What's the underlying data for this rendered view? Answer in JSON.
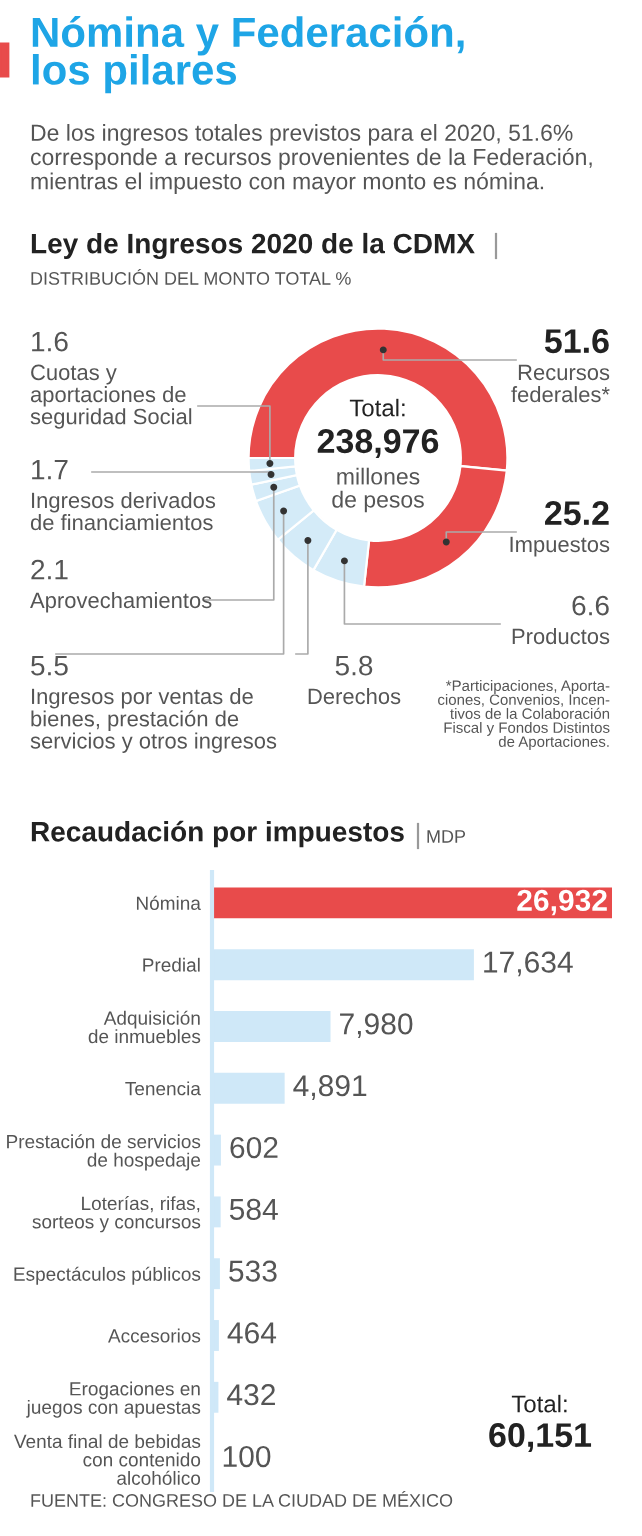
{
  "chart_data": [
    {
      "type": "donut",
      "title": "Ley de Ingresos 2020 de la CDMX",
      "subtitle": "DISTRIBUCIÓN DEL MONTO TOTAL %",
      "categories": [
        "Recursos\nfederales*",
        "Impuestos",
        "Productos",
        "Derechos",
        "Ingresos por ventas de\nbienes, prestación de\nservicios y otros ingresos",
        "Aprovechamientos",
        "Ingresos derivados\nde financiamientos",
        "Cuotas y\naportaciones de\nseguridad Social"
      ],
      "values": [
        51.6,
        25.2,
        6.6,
        5.8,
        5.5,
        2.1,
        1.7,
        1.6
      ],
      "colors": [
        "#e84b4b",
        "#e84b4b",
        "#d4ebf8",
        "#d4ebf8",
        "#d4ebf8",
        "#d4ebf8",
        "#d4ebf8",
        "#d4ebf8"
      ],
      "data_labels": true,
      "annotations": [
        "Nómina y Federación,\nlos pilares",
        "De los ingresos totales previstos para el 2020, 51.6% corresponde a recursos provenientes de la Federación, mientras el impuesto con mayor monto es nómina.",
        "Total:",
        "238,976",
        "millones\nde pesos",
        "*Participaciones, Aporta-\nciones, Convenios, Incen-\ntivos de la Colaboración\nFiscal y Fondos Distintos\nde Aportaciones."
      ]
    },
    {
      "type": "bar",
      "orientation": "horizontal",
      "title": "Recaudación por impuestos",
      "subtitle": "MDP",
      "categories": [
        "Nómina",
        "Predial",
        "Adquisición\nde inmuebles",
        "Tenencia",
        "Prestación de servicios\nde hospedaje",
        "Loterías, rifas,\nsorteos y concursos",
        "Espectáculos públicos",
        "Accesorios",
        "Erogaciones en\njuegos con apuestas",
        "Venta final de bebidas\ncon contenido\nalcohólico"
      ],
      "values": [
        26932,
        17634,
        7980,
        4891,
        602,
        584,
        533,
        464,
        432,
        100
      ],
      "colors": [
        "#e84b4b",
        "#cfe8f8",
        "#cfe8f8",
        "#cfe8f8",
        "#cfe8f8",
        "#cfe8f8",
        "#cfe8f8",
        "#cfe8f8",
        "#cfe8f8",
        "#cfe8f8"
      ],
      "value_labels": [
        "26,932",
        "17,634",
        "7,980",
        "4,891",
        "602",
        "584",
        "533",
        "464",
        "432",
        "100"
      ],
      "grid": false,
      "annotations": [
        "Total:",
        "60,151",
        "FUENTE: CONGRESO DE LA CIUDAD DE MÉXICO"
      ]
    }
  ]
}
